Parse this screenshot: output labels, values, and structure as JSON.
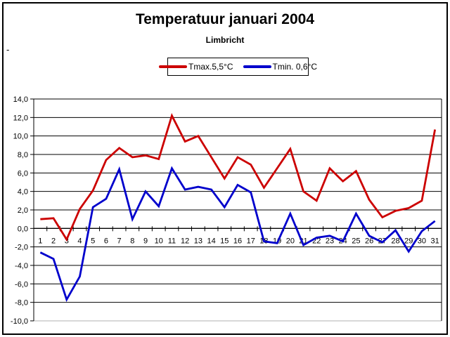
{
  "title": "Temperatuur januari 2004",
  "subtitle": "Limbricht",
  "stray_dash": "-",
  "legend": {
    "items": [
      {
        "label": "Tmax.5,5°C",
        "color": "#cc0000"
      },
      {
        "label": "Tmin. 0,6°C",
        "color": "#0000cc"
      }
    ]
  },
  "chart_data": {
    "type": "line",
    "title": "Temperatuur januari 2004",
    "subtitle": "Limbricht",
    "location": "Limbricht",
    "xlabel": "",
    "ylabel": "",
    "x": [
      1,
      2,
      3,
      4,
      5,
      6,
      7,
      8,
      9,
      10,
      11,
      12,
      13,
      14,
      15,
      16,
      17,
      18,
      19,
      20,
      21,
      22,
      23,
      24,
      25,
      26,
      27,
      28,
      29,
      30,
      31
    ],
    "ylim": [
      -10,
      14
    ],
    "ytick_step": 2,
    "ytick_labels": [
      "14,0",
      "12,0",
      "10,0",
      "8,0",
      "6,0",
      "4,0",
      "2,0",
      "0,0",
      "-2,0",
      "-4,0",
      "-6,0",
      "-8,0",
      "-10,0"
    ],
    "grid": true,
    "legend_position": "top-center",
    "series": [
      {
        "name": "Tmax.5,5°C",
        "mean": "5,5",
        "color": "#cc0000",
        "values": [
          1.0,
          1.1,
          -1.2,
          2.1,
          4.1,
          7.4,
          8.7,
          7.7,
          7.9,
          7.5,
          12.2,
          9.4,
          10.0,
          7.7,
          5.4,
          7.7,
          6.9,
          4.4,
          6.5,
          8.6,
          4.0,
          3.0,
          6.5,
          5.1,
          6.2,
          3.1,
          1.2,
          1.9,
          2.2,
          3.0,
          10.7
        ]
      },
      {
        "name": "Tmin. 0,6°C",
        "mean": "0,6",
        "color": "#0000cc",
        "values": [
          -2.6,
          -3.3,
          -7.7,
          -5.2,
          2.3,
          3.2,
          6.4,
          1.0,
          4.0,
          2.4,
          6.5,
          4.2,
          4.5,
          4.2,
          2.3,
          4.7,
          3.9,
          -1.4,
          -1.6,
          1.6,
          -1.8,
          -1.0,
          -0.8,
          -1.4,
          1.6,
          -0.8,
          -1.5,
          -0.2,
          -2.5,
          -0.3,
          0.8
        ]
      }
    ]
  }
}
